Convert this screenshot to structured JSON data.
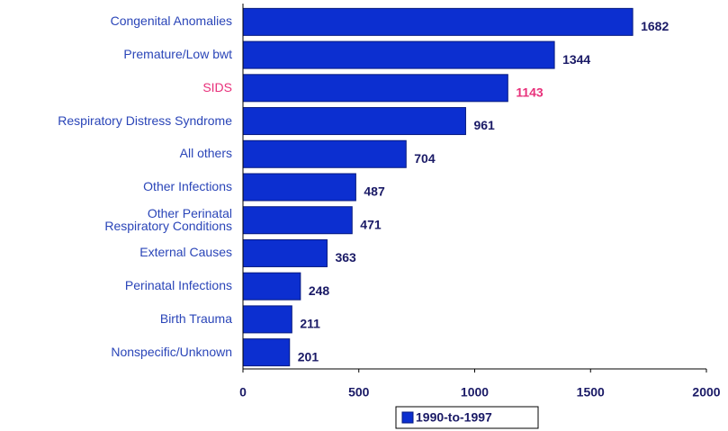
{
  "chart_data": {
    "type": "barh",
    "categories": [
      "Congenital Anomalies",
      "Premature/Low bwt",
      "SIDS",
      "Respiratory Distress Syndrome",
      "All others",
      "Other Infections",
      "Other Perinatal\nRespiratory Conditions",
      "External Causes",
      "Perinatal Infections",
      "Birth Trauma",
      "Nonspecific/Unknown"
    ],
    "series": [
      {
        "name": "1990-to-1997",
        "color": "#0c2fd0",
        "values": [
          1682,
          1344,
          1143,
          961,
          704,
          487,
          471,
          363,
          248,
          211,
          201
        ]
      }
    ],
    "xlim": [
      0,
      2000
    ],
    "xticks": [
      0,
      500,
      1000,
      1500,
      2000
    ],
    "highlight": {
      "category": "SIDS",
      "color": "#e8307a"
    }
  }
}
